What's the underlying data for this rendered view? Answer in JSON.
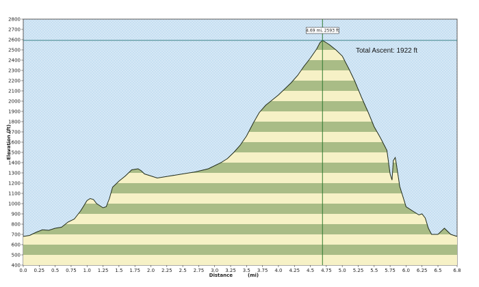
{
  "chart_data": {
    "type": "area",
    "xlabel": "Distance",
    "xlabel_unit": "(mi)",
    "ylabel": "Elevation (ft)",
    "xlim": [
      0,
      6.8
    ],
    "ylim": [
      400,
      2800
    ],
    "x_ticks": [
      "0.0",
      "0.25",
      "0.5",
      "0.75",
      "1.0",
      "1.25",
      "1.5",
      "1.75",
      "2.0",
      "2.25",
      "2.5",
      "2.75",
      "3.0",
      "3.25",
      "3.5",
      "3.75",
      "4.0",
      "4.25",
      "4.5",
      "4.75",
      "5.0",
      "5.25",
      "5.5",
      "5.75",
      "6.0",
      "6.25",
      "6.5",
      "6.8"
    ],
    "y_ticks": [
      "400",
      "500",
      "600",
      "700",
      "800",
      "900",
      "1000",
      "1100",
      "1200",
      "1300",
      "1400",
      "1500",
      "1600",
      "1700",
      "1800",
      "1900",
      "2000",
      "2100",
      "2200",
      "2300",
      "2400",
      "2500",
      "2600",
      "2700",
      "2800"
    ],
    "grid": true,
    "annotation": "Total Ascent: 1922 ft",
    "marker": {
      "label": "4.69 mi, 2593 ft",
      "x": 4.69,
      "y": 2593
    },
    "series": [
      {
        "x": [
          0.0,
          0.1,
          0.2,
          0.3,
          0.4,
          0.5,
          0.6,
          0.7,
          0.8,
          0.9,
          1.0,
          1.05,
          1.1,
          1.15,
          1.2,
          1.25,
          1.3,
          1.35,
          1.4,
          1.5,
          1.6,
          1.7,
          1.8,
          1.85,
          1.9,
          2.0,
          2.1,
          2.2,
          2.3,
          2.5,
          2.7,
          2.9,
          3.1,
          3.2,
          3.3,
          3.4,
          3.5,
          3.6,
          3.7,
          3.8,
          3.9,
          4.0,
          4.1,
          4.2,
          4.3,
          4.4,
          4.5,
          4.6,
          4.65,
          4.69,
          4.75,
          4.8,
          4.9,
          5.0,
          5.1,
          5.2,
          5.3,
          5.4,
          5.5,
          5.6,
          5.7,
          5.75,
          5.78,
          5.8,
          5.83,
          5.85,
          5.9,
          6.0,
          6.1,
          6.2,
          6.25,
          6.3,
          6.35,
          6.4,
          6.5,
          6.6,
          6.7,
          6.8
        ],
        "y": [
          680,
          690,
          720,
          745,
          740,
          760,
          770,
          820,
          850,
          930,
          1030,
          1050,
          1040,
          1000,
          980,
          960,
          970,
          1050,
          1160,
          1220,
          1270,
          1330,
          1340,
          1320,
          1290,
          1270,
          1250,
          1260,
          1270,
          1290,
          1310,
          1340,
          1400,
          1440,
          1500,
          1570,
          1660,
          1780,
          1890,
          1960,
          2010,
          2060,
          2120,
          2180,
          2250,
          2340,
          2420,
          2510,
          2570,
          2593,
          2570,
          2550,
          2500,
          2440,
          2320,
          2190,
          2040,
          1900,
          1750,
          1640,
          1520,
          1290,
          1230,
          1420,
          1450,
          1380,
          1170,
          970,
          930,
          890,
          900,
          860,
          760,
          700,
          700,
          760,
          700,
          680
        ]
      }
    ]
  }
}
